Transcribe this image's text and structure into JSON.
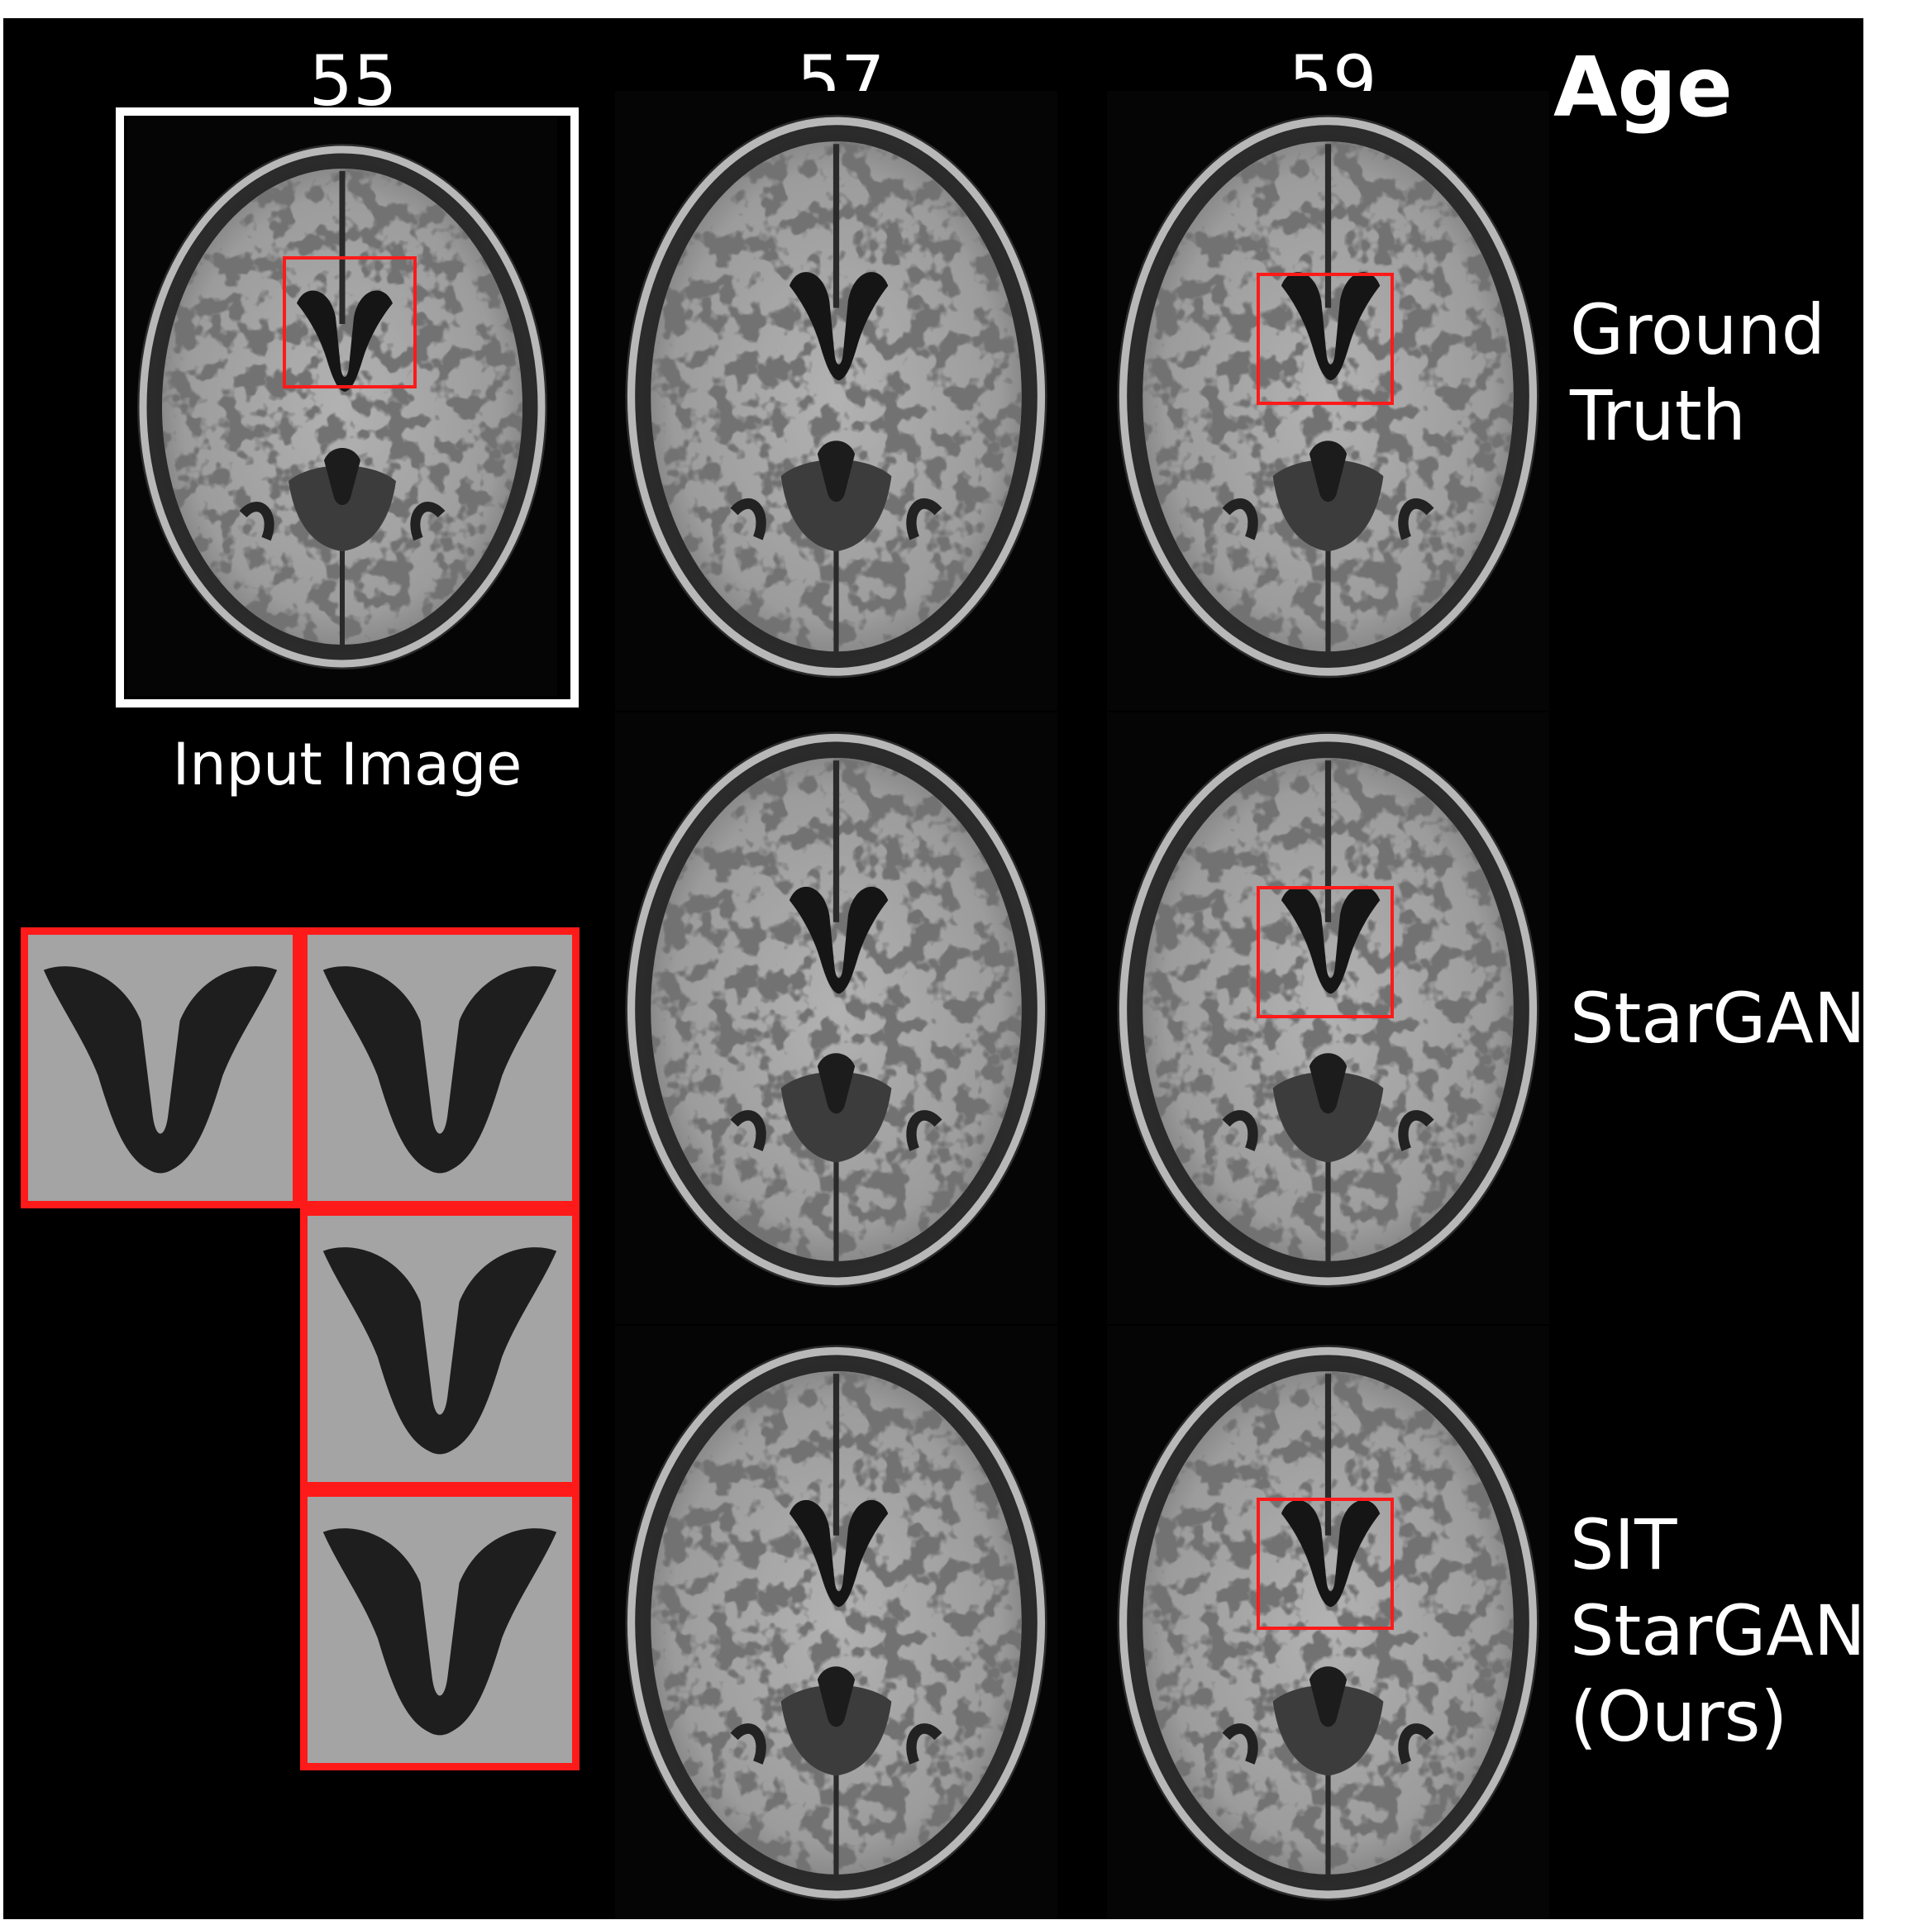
{
  "axis_title": "Age",
  "columns": [
    {
      "label": "55"
    },
    {
      "label": "57"
    },
    {
      "label": "59"
    }
  ],
  "rows": [
    {
      "label": "Ground\nTruth"
    },
    {
      "label": "StarGAN"
    },
    {
      "label": "SIT\nStarGAN\n(Ours)"
    }
  ],
  "input_caption": "Input Image",
  "colors": {
    "background": "#000000",
    "roi_box": "#ff1a1a",
    "input_frame": "#ffffff",
    "label_text": "#ffffff"
  }
}
